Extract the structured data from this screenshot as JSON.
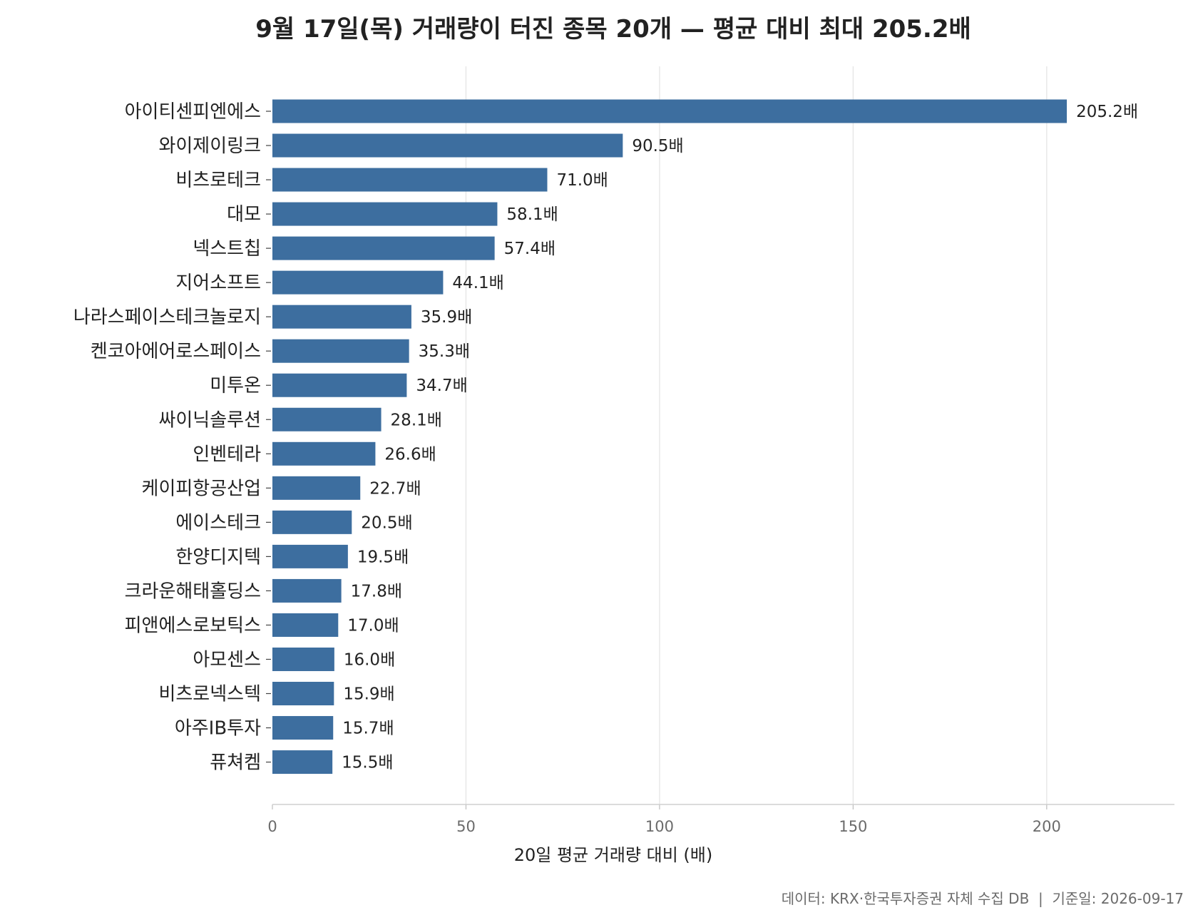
{
  "chart_data": {
    "type": "bar",
    "orientation": "horizontal",
    "title": "9월 17일(목) 거래량이 터진 종목 20개 — 평균 대비 최대 205.2배",
    "xlabel": "20일 평균 거래량 대비 (배)",
    "ylabel": "",
    "xlim": [
      0,
      233
    ],
    "xticks": [
      0,
      50,
      100,
      150,
      200
    ],
    "grid": "vertical",
    "value_suffix": "배",
    "bar_color": "#3d6e9f",
    "categories": [
      "아이티센피엔에스",
      "와이제이링크",
      "비츠로테크",
      "대모",
      "넥스트칩",
      "지어소프트",
      "나라스페이스테크놀로지",
      "켄코아에어로스페이스",
      "미투온",
      "싸이닉솔루션",
      "인벤테라",
      "케이피항공산업",
      "에이스테크",
      "한양디지텍",
      "크라운해태홀딩스",
      "피앤에스로보틱스",
      "아모센스",
      "비츠로넥스텍",
      "아주IB투자",
      "퓨쳐켐"
    ],
    "values": [
      205.2,
      90.5,
      71.0,
      58.1,
      57.4,
      44.1,
      35.9,
      35.3,
      34.7,
      28.1,
      26.6,
      22.7,
      20.5,
      19.5,
      17.8,
      17.0,
      16.0,
      15.9,
      15.7,
      15.5
    ],
    "value_labels": [
      "205.2배",
      "90.5배",
      "71.0배",
      "58.1배",
      "57.4배",
      "44.1배",
      "35.9배",
      "35.3배",
      "34.7배",
      "28.1배",
      "26.6배",
      "22.7배",
      "20.5배",
      "19.5배",
      "17.8배",
      "17.0배",
      "16.0배",
      "15.9배",
      "15.7배",
      "15.5배"
    ],
    "footer": "데이터: KRX·한국투자증권 자체 수집 DB  |  기준일: 2026-09-17"
  }
}
